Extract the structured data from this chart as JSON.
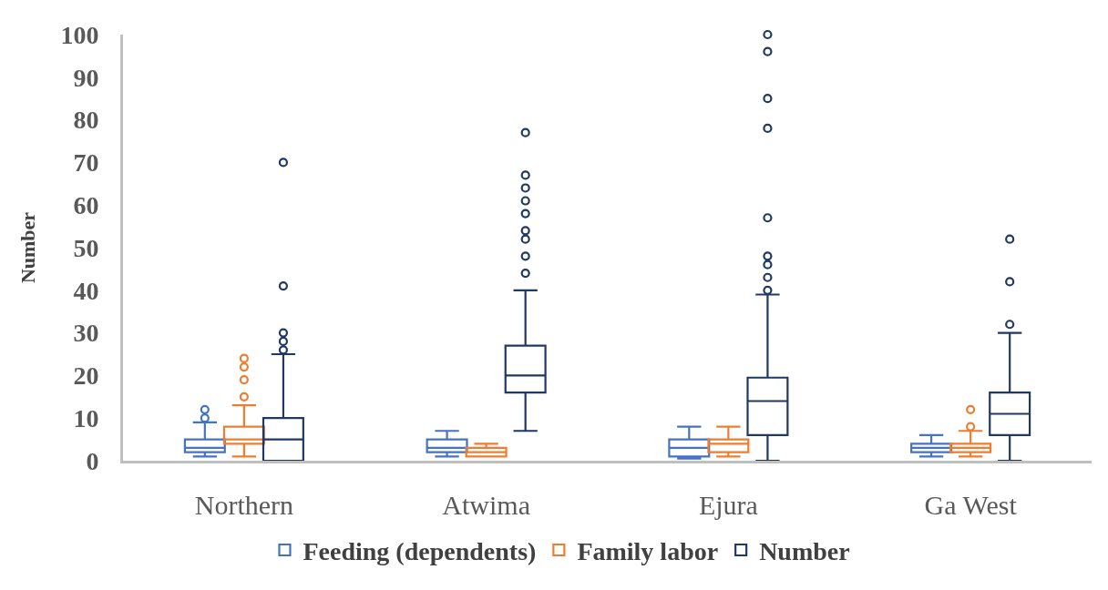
{
  "chart_data": {
    "type": "box",
    "ylabel": "Number",
    "categories": [
      "Northern",
      "Atwima",
      "Ejura",
      "Ga West"
    ],
    "ylim": [
      0,
      100
    ],
    "yticks": [
      0,
      10,
      20,
      30,
      40,
      50,
      60,
      70,
      80,
      90,
      100
    ],
    "grid": false,
    "legend": "bottom",
    "marker": "circle",
    "series": [
      {
        "name": "Feeding (dependents)",
        "color": "#4472c4",
        "boxes": [
          {
            "low": 1,
            "q1": 2,
            "median": 3,
            "q3": 5,
            "high": 9,
            "outliers": [
              10,
              12
            ]
          },
          {
            "low": 1,
            "q1": 2,
            "median": 3,
            "q3": 5,
            "high": 7
          },
          {
            "low": 0.5,
            "q1": 1,
            "median": 3,
            "q3": 5,
            "high": 8
          },
          {
            "low": 1,
            "q1": 2,
            "median": 3,
            "q3": 4,
            "high": 6
          }
        ]
      },
      {
        "name": "Family labor",
        "color": "#ed7d31",
        "boxes": [
          {
            "low": 1,
            "q1": 4,
            "median": 5,
            "q3": 8,
            "high": 13,
            "outliers": [
              15,
              19,
              22,
              24
            ]
          },
          {
            "low": 1,
            "q1": 1,
            "median": 2,
            "q3": 3,
            "high": 4
          },
          {
            "low": 1,
            "q1": 2,
            "median": 4,
            "q3": 5,
            "high": 8
          },
          {
            "low": 1,
            "q1": 2,
            "median": 3,
            "q3": 4,
            "high": 7,
            "outliers": [
              8,
              12
            ]
          }
        ]
      },
      {
        "name": "Number",
        "color": "#1f3864",
        "boxes": [
          {
            "low": 0,
            "q1": 0,
            "median": 5,
            "q3": 10,
            "high": 25,
            "outliers": [
              26,
              28,
              30,
              41,
              70
            ]
          },
          {
            "low": 7,
            "q1": 16,
            "median": 20,
            "q3": 27,
            "high": 40,
            "outliers": [
              44,
              48,
              52,
              54,
              58,
              61,
              64,
              67,
              77
            ]
          },
          {
            "low": 0,
            "q1": 6,
            "median": 14,
            "q3": 19.5,
            "high": 39,
            "outliers": [
              40,
              43,
              46,
              48,
              57,
              78,
              85,
              96,
              100
            ]
          },
          {
            "low": 0,
            "q1": 6,
            "median": 11,
            "q3": 16,
            "high": 30,
            "outliers": [
              32,
              42,
              52
            ]
          }
        ]
      }
    ]
  }
}
